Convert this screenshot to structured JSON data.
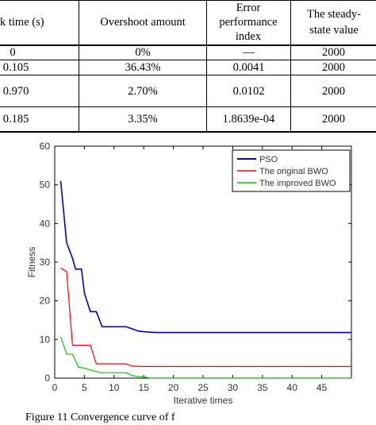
{
  "table": {
    "headers": [
      "k time (s)",
      "Overshoot amount",
      "Error performance index",
      "The steady-state value"
    ],
    "rows": [
      [
        "0",
        "0%",
        "—",
        "2000"
      ],
      [
        "0.105",
        "36.43%",
        "0.0041",
        "2000"
      ],
      [
        "0.970",
        "2.70%",
        "0.0102",
        "2000"
      ],
      [
        "0.185",
        "3.35%",
        "1.8639e-04",
        "2000"
      ]
    ]
  },
  "chart_data": {
    "type": "line",
    "title": "",
    "xlabel": "Iterative times",
    "ylabel": "Fitness",
    "xlim": [
      0,
      50
    ],
    "ylim": [
      0,
      60
    ],
    "xticks": [
      0,
      5,
      10,
      15,
      20,
      25,
      30,
      35,
      40,
      45
    ],
    "yticks": [
      0,
      10,
      20,
      30,
      40,
      50,
      60
    ],
    "grid": false,
    "legend_position": "top-right",
    "series": [
      {
        "name": "PSO",
        "color": "#0000cc",
        "x": [
          1,
          2,
          3,
          3.5,
          4,
          4.5,
          5,
          6,
          7,
          8,
          10,
          12,
          13,
          14,
          15,
          17,
          20,
          30,
          40,
          50
        ],
        "y": [
          51,
          35,
          31,
          28.2,
          28.2,
          28.2,
          22,
          17.2,
          17.2,
          13.3,
          13.3,
          13.3,
          12.8,
          12.2,
          12.0,
          11.8,
          11.8,
          11.8,
          11.8,
          11.8
        ]
      },
      {
        "name": "The original BWO",
        "color": "#ff0000",
        "x": [
          1,
          2,
          3,
          4,
          5,
          6,
          7,
          8,
          10,
          12,
          13,
          15,
          20,
          30,
          40,
          50
        ],
        "y": [
          28.5,
          27.5,
          8.5,
          8.5,
          8.5,
          8.5,
          3.7,
          3.7,
          3.7,
          3.7,
          3.1,
          3.0,
          3.0,
          3.0,
          3.0,
          3.0
        ]
      },
      {
        "name": "The improved BWO",
        "color": "#00cc00",
        "x": [
          1,
          2,
          3,
          3.5,
          4,
          5,
          6,
          7,
          8,
          10,
          12,
          13,
          14,
          15,
          16,
          20,
          30,
          40,
          50
        ],
        "y": [
          10.7,
          6.2,
          6.2,
          4.5,
          2.8,
          2.6,
          2.1,
          1.7,
          1.4,
          1.4,
          1.4,
          0.7,
          0.4,
          0.35,
          0.05,
          0.05,
          0.05,
          0.05,
          0.05
        ]
      }
    ]
  },
  "caption": "Figure 11 Convergence curve of f"
}
